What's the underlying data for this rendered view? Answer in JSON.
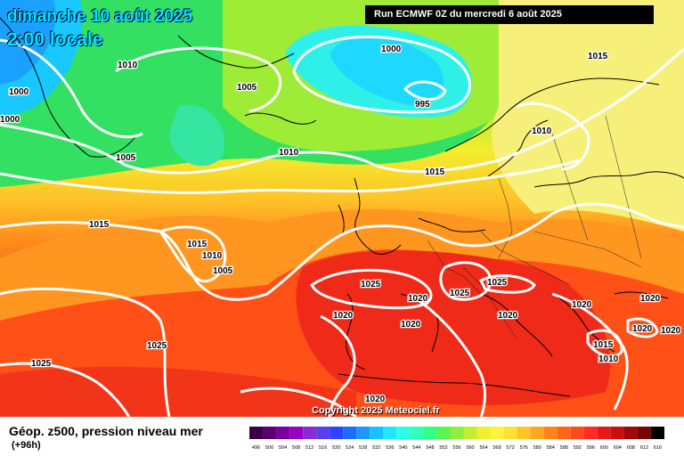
{
  "header": {
    "date": "dimanche 10 août 2025",
    "time": "2:00 locale",
    "run": "Run ECMWF 0Z du mercredi 6 août 2025"
  },
  "copyright": "Copyright 2025 Meteociel.fr",
  "footer": {
    "title": "Géop. z500, pression niveau mer",
    "subtitle": "(+96h)"
  },
  "scale": {
    "values": [
      "496",
      "500",
      "504",
      "508",
      "512",
      "516",
      "520",
      "524",
      "528",
      "532",
      "536",
      "540",
      "544",
      "548",
      "552",
      "556",
      "560",
      "564",
      "568",
      "572",
      "576",
      "580",
      "584",
      "588",
      "592",
      "596",
      "600",
      "604",
      "608",
      "612",
      "616"
    ],
    "colors": [
      "#3c0047",
      "#5a006f",
      "#7a00a0",
      "#9a00c2",
      "#8a2bd8",
      "#5a3ee8",
      "#2e42ff",
      "#1a6bff",
      "#1a98ff",
      "#14c3ff",
      "#20e6ff",
      "#2affe8",
      "#30ffb5",
      "#35ff80",
      "#5bf551",
      "#8ef03c",
      "#c2ee30",
      "#eef02a",
      "#fff23a",
      "#ffdf30",
      "#ffc428",
      "#ffa520",
      "#ff8418",
      "#ff6418",
      "#ff4820",
      "#ff2a20",
      "#e81818",
      "#c81010",
      "#a00808",
      "#7a0505",
      "#000000"
    ]
  },
  "isobar_labels": [
    {
      "text": "1010"
    },
    {
      "text": "1000"
    },
    {
      "text": "1000"
    },
    {
      "text": "1000"
    },
    {
      "text": "1005"
    },
    {
      "text": "995"
    },
    {
      "text": "1015"
    },
    {
      "text": "1005"
    },
    {
      "text": "1010"
    },
    {
      "text": "1010"
    },
    {
      "text": "1015"
    },
    {
      "text": "1015"
    },
    {
      "text": "1015"
    },
    {
      "text": "1010"
    },
    {
      "text": "1005"
    },
    {
      "text": "1025"
    },
    {
      "text": "1020"
    },
    {
      "text": "1025"
    },
    {
      "text": "1025"
    },
    {
      "text": "1020"
    },
    {
      "text": "1020"
    },
    {
      "text": "1020"
    },
    {
      "text": "1020"
    },
    {
      "text": "1020"
    },
    {
      "text": "1020"
    },
    {
      "text": "1015"
    },
    {
      "text": "1010"
    },
    {
      "text": "1025"
    },
    {
      "text": "1025"
    },
    {
      "text": "1020"
    }
  ]
}
